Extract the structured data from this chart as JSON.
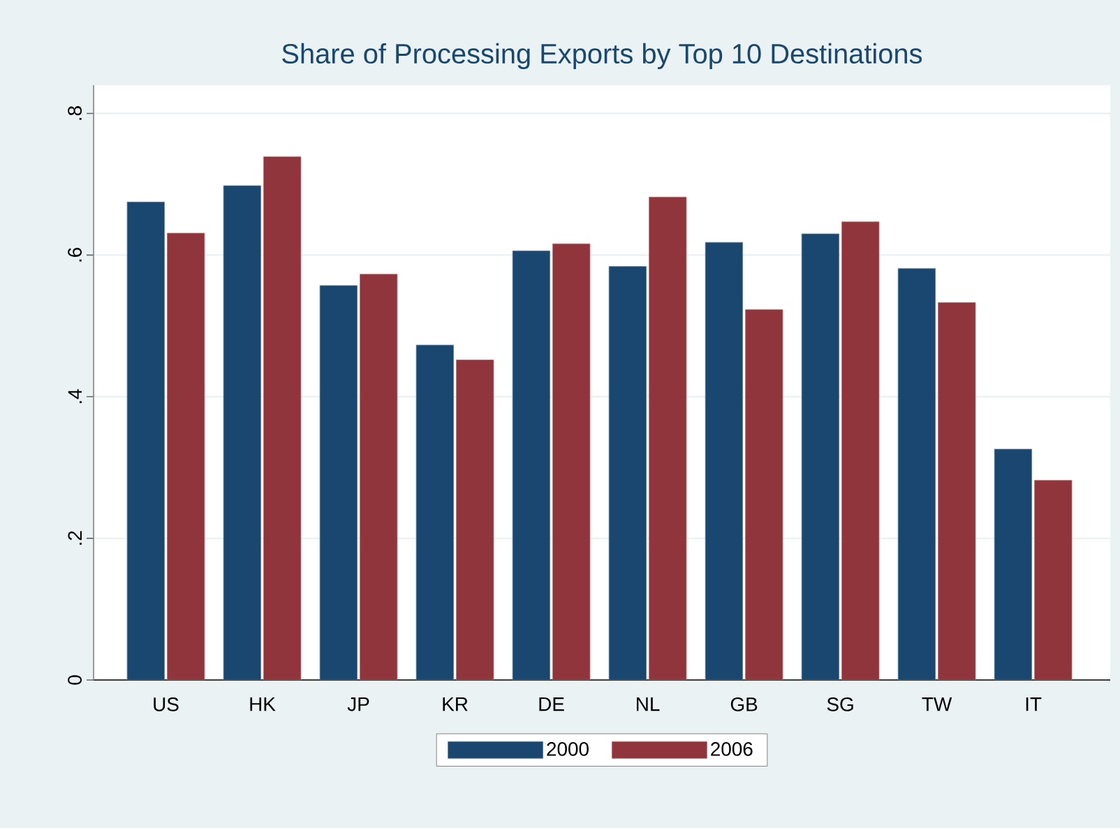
{
  "chart_data": {
    "type": "bar",
    "title": "Share of Processing Exports by Top 10 Destinations",
    "categories": [
      "US",
      "HK",
      "JP",
      "KR",
      "DE",
      "NL",
      "GB",
      "SG",
      "TW",
      "IT"
    ],
    "series": [
      {
        "name": "2000",
        "color": "#1a476f",
        "values": [
          0.675,
          0.698,
          0.557,
          0.473,
          0.606,
          0.584,
          0.618,
          0.63,
          0.581,
          0.326
        ]
      },
      {
        "name": "2006",
        "color": "#90353b",
        "values": [
          0.631,
          0.739,
          0.573,
          0.452,
          0.616,
          0.682,
          0.523,
          0.647,
          0.533,
          0.282
        ]
      }
    ],
    "ylim": [
      0,
      0.84
    ],
    "yticks": [
      {
        "value": 0,
        "label": "0"
      },
      {
        "value": 0.2,
        "label": ".2"
      },
      {
        "value": 0.4,
        "label": ".4"
      },
      {
        "value": 0.6,
        "label": ".6"
      },
      {
        "value": 0.8,
        "label": ".8"
      }
    ],
    "grid": "y",
    "legend": "bottom"
  }
}
